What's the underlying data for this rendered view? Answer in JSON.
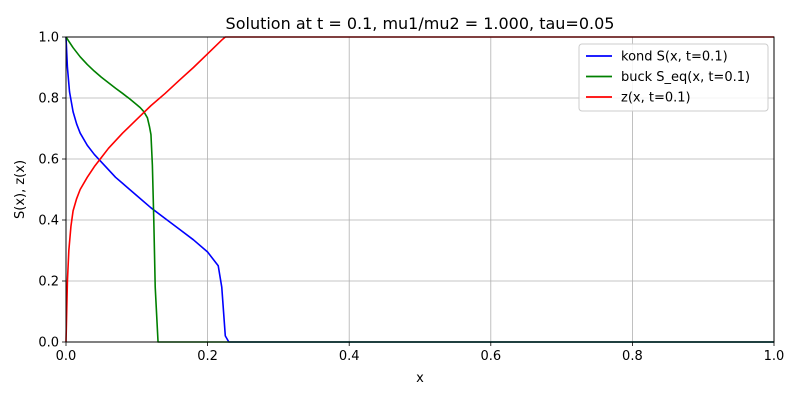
{
  "chart_data": {
    "type": "line",
    "title": "Solution at t = 0.1, mu1/mu2 = 1.000, tau=0.05",
    "xlabel": "x",
    "ylabel": "S(x), z(x)",
    "xlim": [
      0,
      1
    ],
    "ylim": [
      0,
      1
    ],
    "xticks": [
      "0.0",
      "0.2",
      "0.4",
      "0.6",
      "0.8",
      "1.0"
    ],
    "yticks": [
      "0.0",
      "0.2",
      "0.4",
      "0.6",
      "0.8",
      "1.0"
    ],
    "grid": true,
    "legend_position": "top-right",
    "series": [
      {
        "name": "kond S(x, t=0.1)",
        "color": "#0000ff",
        "points": [
          [
            0.0,
            1.0
          ],
          [
            0.002,
            0.9
          ],
          [
            0.005,
            0.82
          ],
          [
            0.01,
            0.755
          ],
          [
            0.015,
            0.715
          ],
          [
            0.02,
            0.685
          ],
          [
            0.03,
            0.645
          ],
          [
            0.04,
            0.615
          ],
          [
            0.05,
            0.59
          ],
          [
            0.06,
            0.565
          ],
          [
            0.07,
            0.54
          ],
          [
            0.08,
            0.52
          ],
          [
            0.1,
            0.48
          ],
          [
            0.12,
            0.44
          ],
          [
            0.14,
            0.405
          ],
          [
            0.16,
            0.37
          ],
          [
            0.18,
            0.335
          ],
          [
            0.2,
            0.295
          ],
          [
            0.215,
            0.25
          ],
          [
            0.22,
            0.18
          ],
          [
            0.225,
            0.02
          ],
          [
            0.23,
            0.0
          ],
          [
            1.0,
            0.0
          ]
        ]
      },
      {
        "name": "buck S_eq(x, t=0.1)",
        "color": "#008000",
        "points": [
          [
            0.0,
            1.0
          ],
          [
            0.01,
            0.965
          ],
          [
            0.02,
            0.935
          ],
          [
            0.03,
            0.91
          ],
          [
            0.04,
            0.888
          ],
          [
            0.05,
            0.868
          ],
          [
            0.06,
            0.85
          ],
          [
            0.07,
            0.832
          ],
          [
            0.08,
            0.815
          ],
          [
            0.09,
            0.797
          ],
          [
            0.1,
            0.778
          ],
          [
            0.105,
            0.768
          ],
          [
            0.11,
            0.755
          ],
          [
            0.115,
            0.735
          ],
          [
            0.118,
            0.705
          ],
          [
            0.12,
            0.68
          ],
          [
            0.122,
            0.58
          ],
          [
            0.124,
            0.4
          ],
          [
            0.126,
            0.18
          ],
          [
            0.13,
            0.0
          ],
          [
            1.0,
            0.0
          ]
        ]
      },
      {
        "name": "z(x, t=0.1)",
        "color": "#ff0000",
        "points": [
          [
            0.0,
            0.0
          ],
          [
            0.002,
            0.2
          ],
          [
            0.004,
            0.3
          ],
          [
            0.007,
            0.38
          ],
          [
            0.01,
            0.43
          ],
          [
            0.015,
            0.47
          ],
          [
            0.02,
            0.5
          ],
          [
            0.03,
            0.54
          ],
          [
            0.04,
            0.575
          ],
          [
            0.05,
            0.605
          ],
          [
            0.06,
            0.635
          ],
          [
            0.08,
            0.685
          ],
          [
            0.1,
            0.73
          ],
          [
            0.12,
            0.775
          ],
          [
            0.14,
            0.815
          ],
          [
            0.16,
            0.858
          ],
          [
            0.18,
            0.9
          ],
          [
            0.2,
            0.945
          ],
          [
            0.22,
            0.99
          ],
          [
            0.225,
            1.0
          ],
          [
            1.0,
            1.0
          ]
        ]
      }
    ]
  }
}
